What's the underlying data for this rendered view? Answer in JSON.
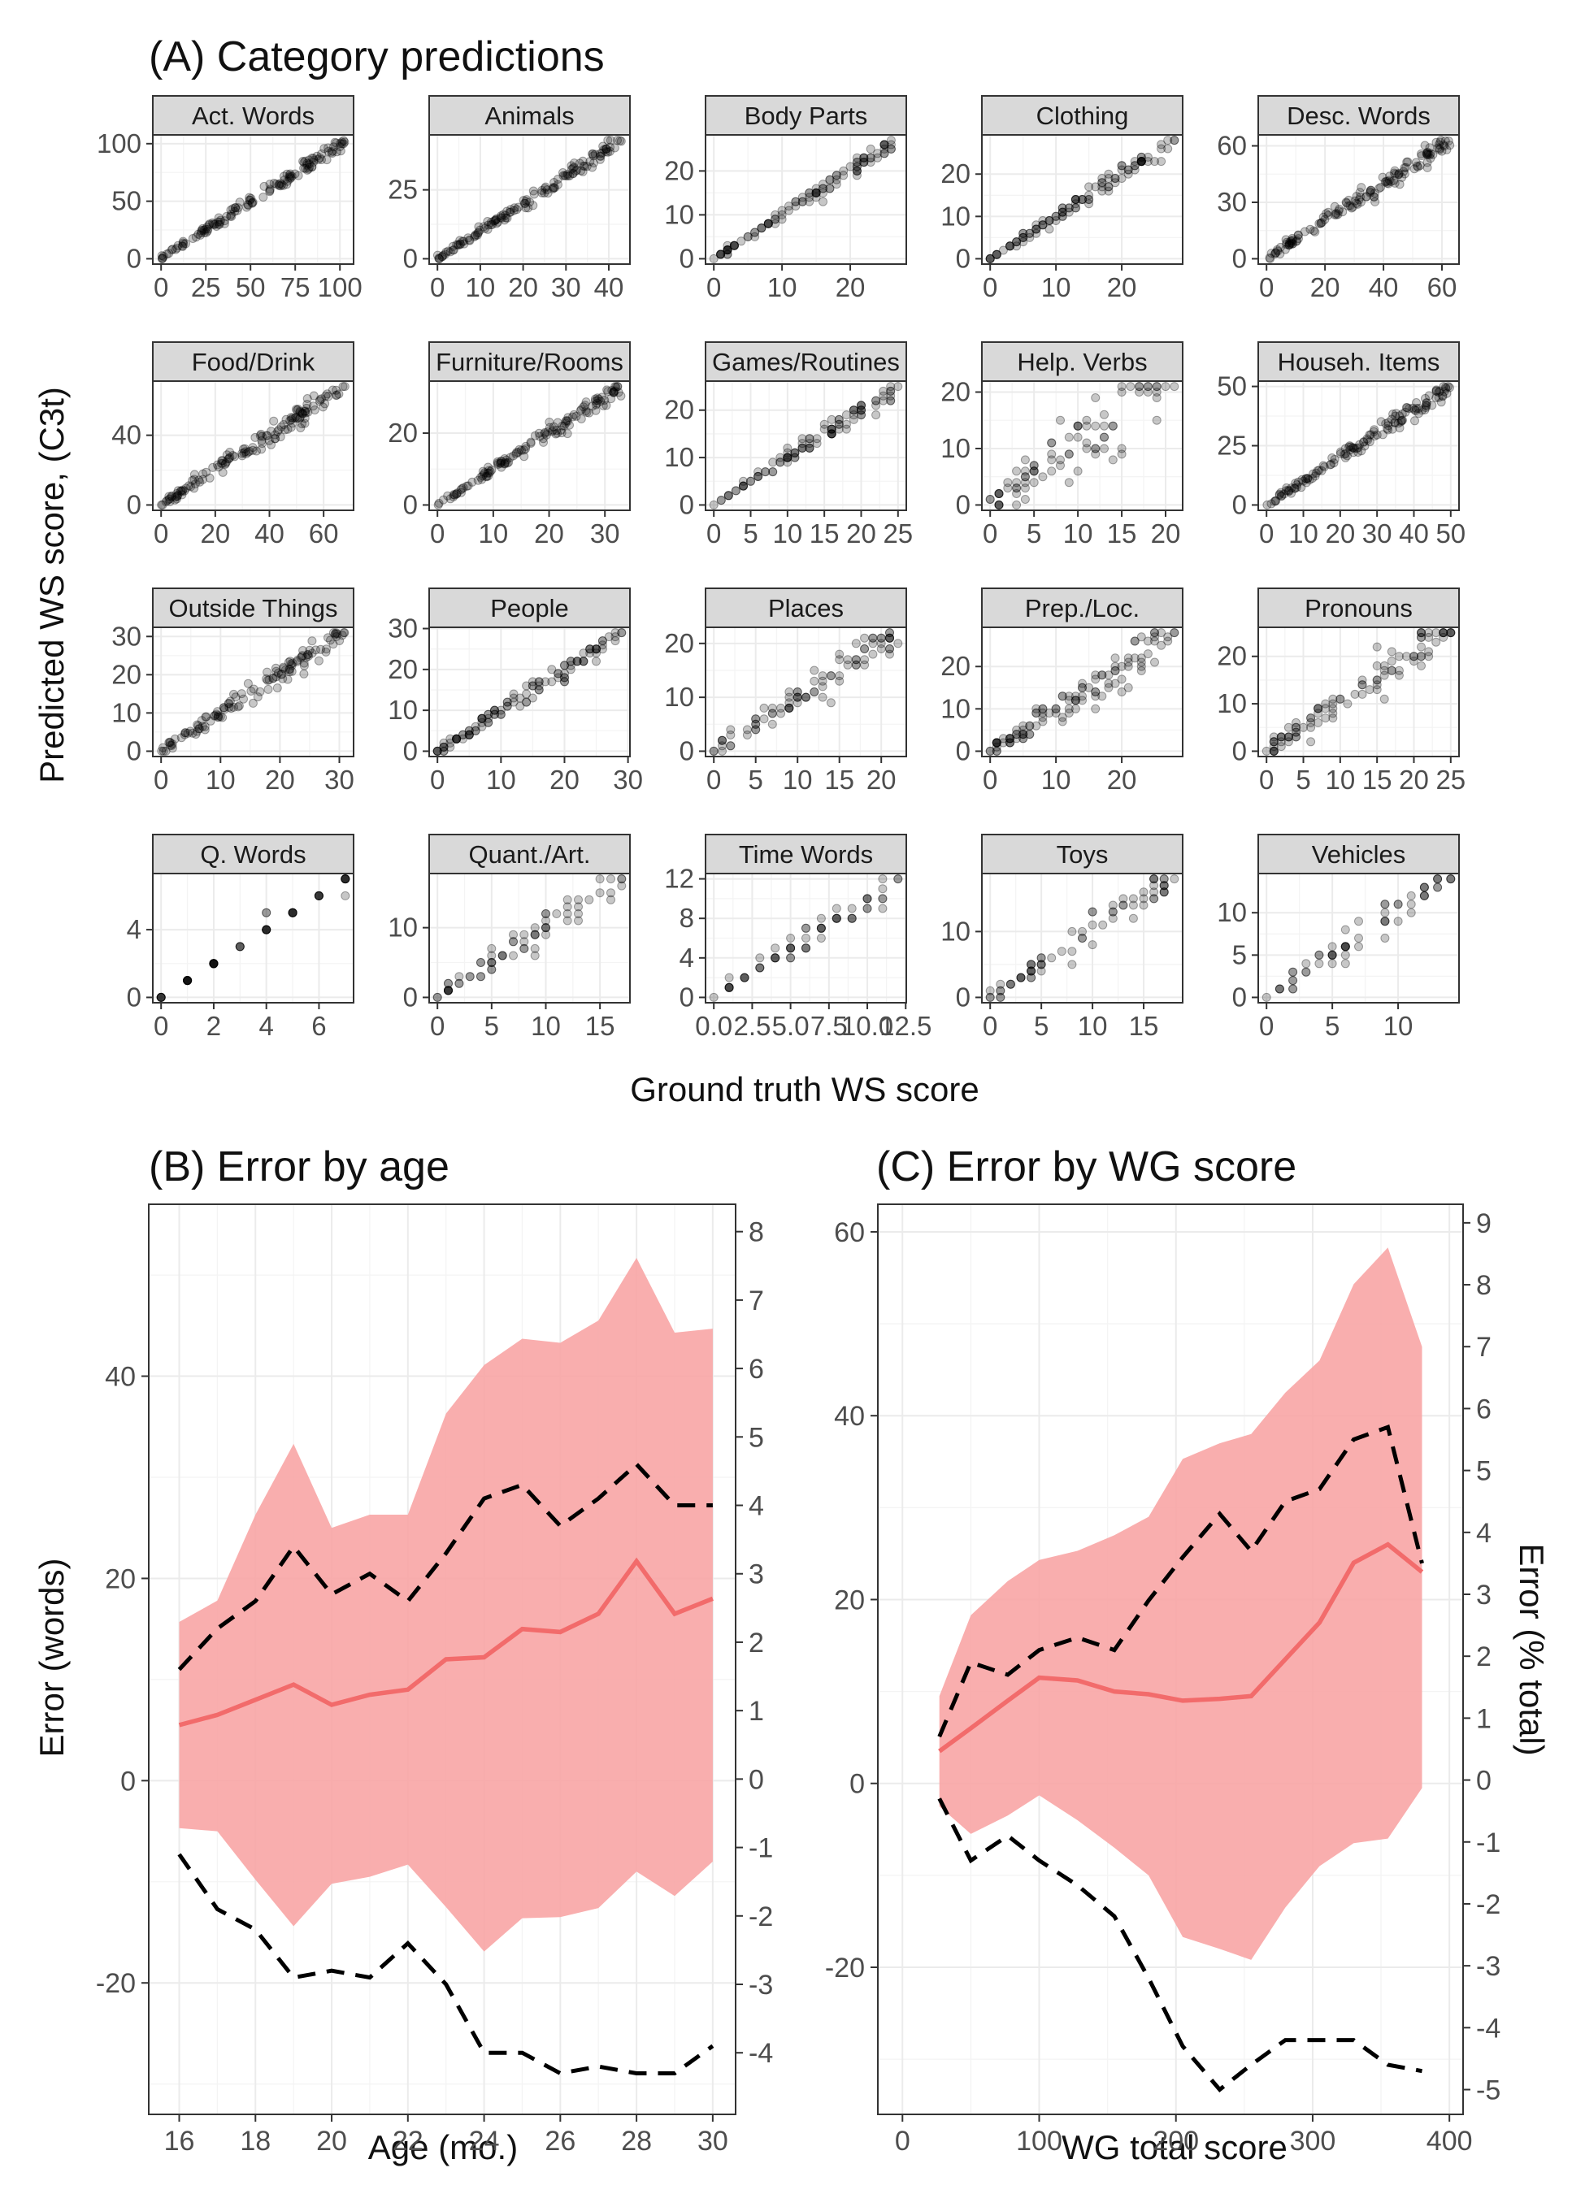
{
  "panel_a": {
    "title": "(A) Category predictions",
    "xlabel": "Ground truth WS score",
    "ylabel": "Predicted WS score, (C3t)"
  },
  "panel_b": {
    "title": "(B) Error by age",
    "xlabel": "Age (mo.)",
    "ylabel": "Error (words)"
  },
  "panel_c": {
    "title": "(C) Error by WG score",
    "xlabel": "WG total score",
    "ylabel": "Error (% total)"
  },
  "colors": {
    "point": "#000000",
    "ribbon": "#f8a5a5",
    "mean_line": "#f26b6b",
    "dashed": "#000000",
    "strip_fill": "#d9d9d9"
  },
  "chart_data": [
    {
      "type": "scatter",
      "panel": "A",
      "facets": [
        {
          "name": "Act. Words",
          "max": 103,
          "xticks": [
            0,
            25,
            50,
            75,
            100
          ],
          "xtick_labels": [
            "0",
            "25",
            "50",
            "75",
            "100"
          ],
          "yticks": [
            0,
            50,
            100
          ],
          "ytick_labels": [
            "0",
            "50",
            "100"
          ],
          "spread": 3
        },
        {
          "name": "Animals",
          "max": 43,
          "xticks": [
            0,
            10,
            20,
            30,
            40
          ],
          "xtick_labels": [
            "0",
            "10",
            "20",
            "30",
            "40"
          ],
          "yticks": [
            0,
            25
          ],
          "ytick_labels": [
            "0",
            "25"
          ],
          "spread": 1.3
        },
        {
          "name": "Body Parts",
          "max": 27,
          "xticks": [
            0,
            10,
            20
          ],
          "xtick_labels": [
            "0",
            "10",
            "20"
          ],
          "yticks": [
            0,
            10,
            20
          ],
          "ytick_labels": [
            "0",
            "10",
            "20"
          ],
          "spread": 0.9
        },
        {
          "name": "Clothing",
          "max": 28,
          "xticks": [
            0,
            10,
            20
          ],
          "xtick_labels": [
            "0",
            "10",
            "20"
          ],
          "yticks": [
            0,
            10,
            20
          ],
          "ytick_labels": [
            "0",
            "10",
            "20"
          ],
          "spread": 1.0
        },
        {
          "name": "Desc. Words",
          "max": 63,
          "xticks": [
            0,
            20,
            40,
            60
          ],
          "xtick_labels": [
            "0",
            "20",
            "40",
            "60"
          ],
          "yticks": [
            0,
            30,
            60
          ],
          "ytick_labels": [
            "0",
            "30",
            "60"
          ],
          "spread": 2.5
        },
        {
          "name": "Food/Drink",
          "max": 68,
          "xticks": [
            0,
            20,
            40,
            60
          ],
          "xtick_labels": [
            "0",
            "20",
            "40",
            "60"
          ],
          "yticks": [
            0,
            40
          ],
          "ytick_labels": [
            "0",
            "40"
          ],
          "spread": 3
        },
        {
          "name": "Furniture/Rooms",
          "max": 33,
          "xticks": [
            0,
            10,
            20,
            30
          ],
          "xtick_labels": [
            "0",
            "10",
            "20",
            "30"
          ],
          "yticks": [
            0,
            20
          ],
          "ytick_labels": [
            "0",
            "20"
          ],
          "spread": 1.2
        },
        {
          "name": "Games/Routines",
          "max": 25,
          "xticks": [
            0,
            5,
            10,
            15,
            20,
            25
          ],
          "xtick_labels": [
            "0",
            "5",
            "10",
            "15",
            "20",
            "25"
          ],
          "yticks": [
            0,
            10,
            20
          ],
          "ytick_labels": [
            "0",
            "10",
            "20"
          ],
          "spread": 1.0
        },
        {
          "name": "Help. Verbs",
          "max": 21,
          "xticks": [
            0,
            5,
            10,
            15,
            20
          ],
          "xtick_labels": [
            "0",
            "5",
            "10",
            "15",
            "20"
          ],
          "yticks": [
            0,
            10,
            20
          ],
          "ytick_labels": [
            "0",
            "10",
            "20"
          ],
          "spread": 4
        },
        {
          "name": "Househ. Items",
          "max": 50,
          "xticks": [
            0,
            10,
            20,
            30,
            40,
            50
          ],
          "xtick_labels": [
            "0",
            "10",
            "20",
            "30",
            "40",
            "50"
          ],
          "yticks": [
            0,
            25,
            50
          ],
          "ytick_labels": [
            "0",
            "25",
            "50"
          ],
          "spread": 1.8
        },
        {
          "name": "Outside Things",
          "max": 31,
          "xticks": [
            0,
            10,
            20,
            30
          ],
          "xtick_labels": [
            "0",
            "10",
            "20",
            "30"
          ],
          "yticks": [
            0,
            10,
            20,
            30
          ],
          "ytick_labels": [
            "0",
            "10",
            "20",
            "30"
          ],
          "spread": 1.6
        },
        {
          "name": "People",
          "max": 29,
          "xticks": [
            0,
            10,
            20,
            30
          ],
          "xtick_labels": [
            "0",
            "10",
            "20",
            "30"
          ],
          "yticks": [
            0,
            10,
            20,
            30
          ],
          "ytick_labels": [
            "0",
            "10",
            "20",
            "30"
          ],
          "spread": 1.2
        },
        {
          "name": "Places",
          "max": 22,
          "xticks": [
            0,
            5,
            10,
            15,
            20
          ],
          "xtick_labels": [
            "0",
            "5",
            "10",
            "15",
            "20"
          ],
          "yticks": [
            0,
            10,
            20
          ],
          "ytick_labels": [
            "0",
            "10",
            "20"
          ],
          "spread": 1.6
        },
        {
          "name": "Prep./Loc.",
          "max": 28,
          "xticks": [
            0,
            10,
            20
          ],
          "xtick_labels": [
            "0",
            "10",
            "20"
          ],
          "yticks": [
            0,
            10,
            20
          ],
          "ytick_labels": [
            "0",
            "10",
            "20"
          ],
          "spread": 2.6
        },
        {
          "name": "Pronouns",
          "max": 25,
          "xticks": [
            0,
            5,
            10,
            15,
            20,
            25
          ],
          "xtick_labels": [
            "0",
            "5",
            "10",
            "15",
            "20",
            "25"
          ],
          "yticks": [
            0,
            10,
            20
          ],
          "ytick_labels": [
            "0",
            "10",
            "20"
          ],
          "spread": 2.6
        },
        {
          "name": "Q. Words",
          "max": 7,
          "xticks": [
            0,
            2,
            4,
            6
          ],
          "xtick_labels": [
            "0",
            "2",
            "4",
            "6"
          ],
          "yticks": [
            0,
            4
          ],
          "ytick_labels": [
            "0",
            "4"
          ],
          "spread": 0.4
        },
        {
          "name": "Quant./Art.",
          "max": 17,
          "xticks": [
            0,
            5,
            10,
            15
          ],
          "xtick_labels": [
            "0",
            "5",
            "10",
            "15"
          ],
          "yticks": [
            0,
            10
          ],
          "ytick_labels": [
            "0",
            "10"
          ],
          "spread": 1.4
        },
        {
          "name": "Time Words",
          "max": 12,
          "xticks": [
            0,
            2.5,
            5,
            7.5,
            10,
            12.5
          ],
          "xtick_labels": [
            "0.0",
            "2.5",
            "5.0",
            "7.5",
            "10.0",
            "12.5"
          ],
          "yticks": [
            0,
            4,
            8,
            12
          ],
          "ytick_labels": [
            "0",
            "4",
            "8",
            "12"
          ],
          "spread": 0.9
        },
        {
          "name": "Toys",
          "max": 18,
          "xticks": [
            0,
            5,
            10,
            15
          ],
          "xtick_labels": [
            "0",
            "5",
            "10",
            "15"
          ],
          "yticks": [
            0,
            10
          ],
          "ytick_labels": [
            "0",
            "10"
          ],
          "spread": 1.3
        },
        {
          "name": "Vehicles",
          "max": 14,
          "xticks": [
            0,
            5,
            10
          ],
          "xtick_labels": [
            "0",
            "5",
            "10"
          ],
          "yticks": [
            0,
            5,
            10
          ],
          "ytick_labels": [
            "0",
            "5",
            "10"
          ],
          "spread": 1.0
        }
      ]
    },
    {
      "type": "line",
      "panel": "B",
      "x": [
        16,
        17,
        18,
        19,
        20,
        21,
        22,
        23,
        24,
        25,
        26,
        27,
        28,
        29,
        30
      ],
      "xlim": [
        15.2,
        30.6
      ],
      "ylim": [
        -33,
        57
      ],
      "xticks": [
        16,
        18,
        20,
        22,
        24,
        26,
        28,
        30
      ],
      "yticks": [
        -20,
        0,
        20,
        40
      ],
      "y2lim": [
        -4.9,
        8.4
      ],
      "y2ticks": [
        -4,
        -3,
        -2,
        -1,
        0,
        1,
        2,
        3,
        4,
        5,
        6,
        7,
        8
      ],
      "mean": [
        5.5,
        6.5,
        8,
        9.5,
        7.5,
        8.5,
        9,
        12,
        12.2,
        15,
        14.7,
        16.5,
        21.7,
        16.5,
        18
      ],
      "ribbon_upper": [
        15.7,
        17.8,
        26.3,
        33.3,
        25,
        26.3,
        26.3,
        36.3,
        41.1,
        43.7,
        43.3,
        45.5,
        51.7,
        44.3,
        44.7
      ],
      "ribbon_lower": [
        -4.7,
        -5,
        -9.8,
        -14.4,
        -10.2,
        -9.5,
        -8.3,
        -12.5,
        -16.9,
        -13.6,
        -13.5,
        -12.6,
        -9,
        -11.4,
        -8
      ],
      "dashed_upper_pct": [
        1.6,
        2.2,
        2.6,
        3.4,
        2.7,
        3,
        2.6,
        3.3,
        4.1,
        4.3,
        3.7,
        4.1,
        4.6,
        4,
        4
      ],
      "dashed_lower_pct": [
        -1.1,
        -1.9,
        -2.2,
        -2.9,
        -2.8,
        -2.9,
        -2.4,
        -3,
        -4,
        -4,
        -4.3,
        -4.2,
        -4.3,
        -4.3,
        -3.9
      ]
    },
    {
      "type": "line",
      "panel": "C",
      "x": [
        27,
        50,
        77,
        100,
        128,
        155,
        180,
        205,
        232,
        255,
        280,
        305,
        330,
        355,
        380
      ],
      "xlim": [
        -18,
        410
      ],
      "ylim": [
        -36,
        63
      ],
      "xticks": [
        0,
        100,
        200,
        300,
        400
      ],
      "yticks": [
        -20,
        0,
        20,
        40,
        60
      ],
      "y2lim": [
        -5.4,
        9.3
      ],
      "y2ticks": [
        -5,
        -4,
        -3,
        -2,
        -1,
        0,
        1,
        2,
        3,
        4,
        5,
        6,
        7,
        8,
        9
      ],
      "mean": [
        3.5,
        6,
        9,
        11.5,
        11.2,
        10,
        9.7,
        9,
        9.2,
        9.5,
        13.5,
        17.5,
        24,
        26,
        23
      ],
      "ribbon_upper": [
        9.5,
        18.3,
        22,
        24.3,
        25.3,
        27,
        29,
        35.3,
        37,
        38,
        42.5,
        46,
        54.3,
        58.3,
        47.5
      ],
      "ribbon_lower": [
        -2.5,
        -5.5,
        -3.5,
        -1.3,
        -4,
        -7,
        -10,
        -16.7,
        -18,
        -19.2,
        -13.5,
        -9,
        -6.5,
        -6,
        -0.5
      ],
      "dashed_upper_pct": [
        0.7,
        1.9,
        1.7,
        2.1,
        2.3,
        2.1,
        2.9,
        3.6,
        4.3,
        3.7,
        4.5,
        4.7,
        5.5,
        5.7,
        3.5
      ],
      "dashed_lower_pct": [
        -0.3,
        -1.3,
        -0.9,
        -1.3,
        -1.7,
        -2.2,
        -3.2,
        -4.3,
        -5,
        -4.6,
        -4.2,
        -4.2,
        -4.2,
        -4.6,
        -4.7
      ]
    }
  ]
}
